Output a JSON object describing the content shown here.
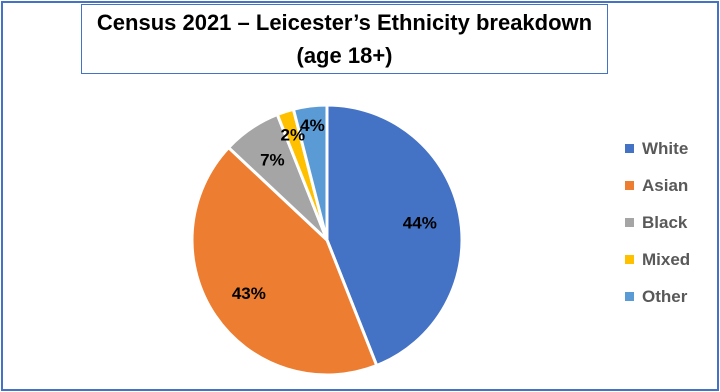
{
  "chart_data": {
    "type": "pie",
    "title": "Census 2021 – Leicester’s Ethnicity breakdown (age 18+)",
    "categories": [
      "White",
      "Asian",
      "Black",
      "Mixed",
      "Other"
    ],
    "values": [
      44,
      43,
      7,
      2,
      4
    ],
    "data_labels": [
      "44%",
      "43%",
      "7%",
      "2%",
      "4%"
    ],
    "colors": [
      "#4472c4",
      "#ed7d31",
      "#a5a5a5",
      "#ffc000",
      "#5b9bd5"
    ],
    "legend_position": "right"
  }
}
